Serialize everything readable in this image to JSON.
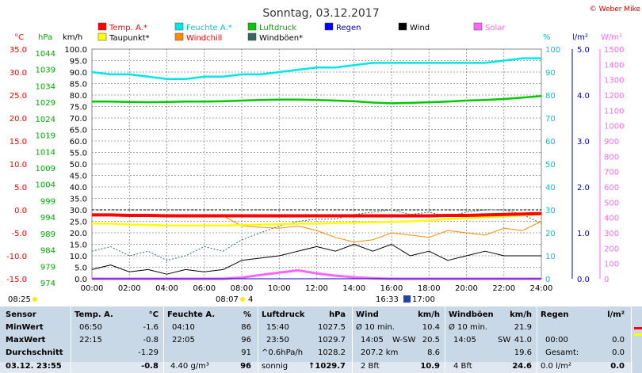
{
  "header": {
    "title": "Sonntag, 03.12.2017",
    "copyright": "© Weber Mike"
  },
  "legend": [
    {
      "label": "Temp. A.*",
      "color": "#ff0000"
    },
    {
      "label": "Feuchte A.*",
      "color": "#00e6e6"
    },
    {
      "label": "Luftdruck",
      "color": "#00c800"
    },
    {
      "label": "Regen",
      "color": "#0000ff"
    },
    {
      "label": "Wind",
      "color": "#000000"
    },
    {
      "label": "Solar",
      "color": "#ff64ff"
    },
    {
      "label": "Taupunkt*",
      "color": "#ffff00"
    },
    {
      "label": "Windchill",
      "color": "#ff8c00"
    },
    {
      "label": "Windböen*",
      "color": "#336666"
    }
  ],
  "units": {
    "temp": "°C",
    "press": "hPa",
    "wind": "km/h",
    "hum": "%",
    "rain": "l/m²",
    "solar": "W/m²"
  },
  "axes": {
    "temp": [
      "35.0",
      "30.0",
      "25.0",
      "20.0",
      "15.0",
      "10.0",
      "5.0",
      "0.0",
      "-5.0",
      "-10.0",
      "-15.0"
    ],
    "press": [
      "1044",
      "1039",
      "1034",
      "1029",
      "1024",
      "1019",
      "1014",
      "1009",
      "1004",
      "999",
      "994",
      "989",
      "984",
      "979",
      "974"
    ],
    "wind": [
      "100.0",
      "95.0",
      "90.0",
      "85.0",
      "80.0",
      "75.0",
      "70.0",
      "65.0",
      "60.0",
      "55.0",
      "50.0",
      "45.0",
      "40.0",
      "35.0",
      "30.0",
      "25.0",
      "20.0",
      "15.0",
      "10.0",
      "5.0",
      "0.0"
    ],
    "hum": [
      "100",
      "90",
      "80",
      "70",
      "60",
      "50",
      "40",
      "30",
      "20",
      "10",
      "0"
    ],
    "rain": [
      "5.0",
      "4.0",
      "3.0",
      "2.0",
      "1.0",
      "0.0"
    ],
    "solar": [
      "1500",
      "1400",
      "1300",
      "1200",
      "1100",
      "1000",
      "900",
      "800",
      "700",
      "600",
      "500",
      "400",
      "300",
      "200",
      "100",
      "0"
    ],
    "time": [
      "00:00",
      "02:00",
      "04:00",
      "06:00",
      "08:00",
      "10:00",
      "12:00",
      "14:00",
      "16:00",
      "18:00",
      "20:00",
      "22:00",
      "24:00"
    ]
  },
  "sun": {
    "rise": "08:07",
    "moon": "4",
    "set": "16:33",
    "moonset": "17:00",
    "left_time": "08:25"
  },
  "chart_data": {
    "type": "line",
    "x": [
      0,
      1,
      2,
      3,
      4,
      5,
      6,
      7,
      8,
      9,
      10,
      11,
      12,
      13,
      14,
      15,
      16,
      17,
      18,
      19,
      20,
      21,
      22,
      23,
      24
    ],
    "series": [
      {
        "name": "Temp. A.*",
        "unit": "°C",
        "values": [
          -1.1,
          -1.1,
          -1.2,
          -1.2,
          -1.3,
          -1.3,
          -1.3,
          -1.3,
          -1.3,
          -1.3,
          -1.3,
          -1.3,
          -1.3,
          -1.3,
          -1.3,
          -1.3,
          -1.3,
          -1.3,
          -1.3,
          -1.2,
          -1.2,
          -1.1,
          -1.0,
          -0.9,
          -0.8
        ]
      },
      {
        "name": "Taupunkt*",
        "unit": "°C",
        "values": [
          -3.0,
          -3.0,
          -3.2,
          -3.3,
          -3.4,
          -3.4,
          -3.4,
          -3.4,
          -3.3,
          -3.2,
          -3.1,
          -3.0,
          -3.0,
          -2.9,
          -2.8,
          -2.7,
          -2.6,
          -2.5,
          -2.3,
          -2.0,
          -1.8,
          -1.6,
          -1.4,
          -1.2,
          -1.0
        ]
      },
      {
        "name": "Feuchte A.*",
        "unit": "%",
        "values": [
          90,
          89,
          89,
          88,
          87,
          87,
          88,
          88,
          89,
          89,
          90,
          91,
          92,
          92,
          93,
          94,
          94,
          94,
          94,
          94,
          94,
          94,
          95,
          96,
          96
        ]
      },
      {
        "name": "Luftdruck",
        "unit": "hPa",
        "values": [
          1028.0,
          1028.0,
          1027.9,
          1027.8,
          1027.9,
          1028.0,
          1028.0,
          1028.1,
          1028.3,
          1028.5,
          1028.6,
          1028.6,
          1028.5,
          1028.3,
          1028.1,
          1027.7,
          1027.5,
          1027.6,
          1027.8,
          1028.0,
          1028.3,
          1028.5,
          1028.8,
          1029.2,
          1029.7
        ]
      },
      {
        "name": "Wind",
        "unit": "km/h",
        "values": [
          4,
          6,
          3,
          4,
          2,
          4,
          3,
          4,
          8,
          9,
          10,
          12,
          14,
          12,
          15,
          12,
          15,
          10,
          12,
          8,
          10,
          12,
          10,
          10,
          10
        ]
      },
      {
        "name": "Windchill",
        "unit": "°C",
        "values": [
          -1.1,
          -1.1,
          -1.2,
          -1.2,
          -1.3,
          -1.3,
          -1.3,
          -1.3,
          -3.5,
          -3.8,
          -4.0,
          -3.5,
          -4.5,
          -6.0,
          -7.0,
          -6.5,
          -5.0,
          -5.5,
          -6.0,
          -4.5,
          -5.0,
          -5.5,
          -4.0,
          -4.5,
          -2.5
        ]
      },
      {
        "name": "Windböen*",
        "unit": "km/h",
        "values": [
          12,
          14,
          10,
          12,
          8,
          10,
          14,
          12,
          17,
          20,
          23,
          25,
          26,
          26,
          28,
          29,
          30,
          28,
          29,
          27,
          29,
          30,
          30,
          28,
          24
        ]
      },
      {
        "name": "Solar",
        "unit": "W/m²",
        "values": [
          0,
          0,
          0,
          0,
          0,
          0,
          0,
          0,
          8,
          25,
          40,
          55,
          35,
          20,
          10,
          3,
          0,
          0,
          0,
          0,
          0,
          0,
          0,
          0,
          0
        ]
      },
      {
        "name": "Regen",
        "unit": "l/m²",
        "values": [
          0,
          0,
          0,
          0,
          0,
          0,
          0,
          0,
          0,
          0,
          0,
          0,
          0,
          0,
          0,
          0,
          0,
          0,
          0,
          0,
          0,
          0,
          0,
          0,
          0
        ]
      }
    ]
  },
  "table": {
    "sensor": {
      "h": "Sensor",
      "r1": "MinWert",
      "r2": "MaxWert",
      "r3": "Durchschnitt",
      "r4": "03.12. 23:55"
    },
    "temp": {
      "h": "Temp. A.",
      "u": "°C",
      "r1t": "06:50",
      "r1v": "-1.6",
      "r2t": "22:15",
      "r2v": "-0.8",
      "r3v": "-1.29",
      "r4v": "-0.8"
    },
    "hum": {
      "h": "Feuchte A.",
      "u": "%",
      "r1t": "04:10",
      "r1v": "86",
      "r2t": "22:05",
      "r2v": "96",
      "r3v": "91",
      "r4t": "4.40 g/m³",
      "r4v": "96"
    },
    "press": {
      "h": "Luftdruck",
      "u": "hPa",
      "r1t": "15:40",
      "r1v": "1027.5",
      "r2t": "23:50",
      "r2v": "1029.7",
      "r3t": "^0.6hPa/h",
      "r3v": "1028.2",
      "r4t": "sonnig",
      "r4v": "↑1029.7"
    },
    "wind": {
      "h": "Wind",
      "u": "km/h",
      "r1t": "Ø 10 min.",
      "r1v": "10.4",
      "r2t": "14:05",
      "r2d": "W-SW",
      "r2v": "20.5",
      "r3t": "207.2 km",
      "r3v": "8.6",
      "r4t": "2 Bft",
      "r4v": "10.9"
    },
    "gust": {
      "h": "Windböen",
      "u": "km/h",
      "r1t": "Ø 10 min.",
      "r1v": "21.9",
      "r2t": "14:05",
      "r2d": "SW",
      "r2v": "41.0",
      "r3v": "19.6",
      "r4t": "4 Bft",
      "r4v": "24.6"
    },
    "rain": {
      "h": "Regen",
      "u": "l/m²",
      "r2t": "00:00",
      "r2v": "0.0",
      "r3t": "Gesamt:",
      "r3v": "0.0",
      "r4t": "0.0 l/m²",
      "r4v": "0.0"
    }
  }
}
